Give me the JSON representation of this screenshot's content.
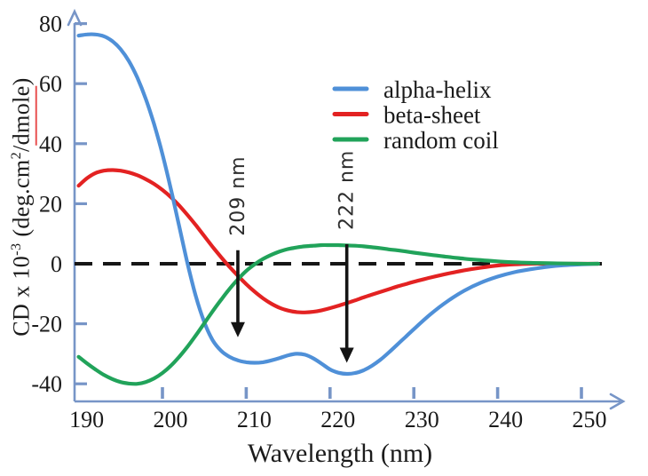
{
  "colors": {
    "alpha_helix": "#4f90d8",
    "beta_sheet": "#e32222",
    "random_coil": "#21a35a",
    "axis": "#7795c7",
    "zero_line": "#161616",
    "annotation": "#141414",
    "text": "#1b1b1b",
    "spellcheck_underline": "#e85050"
  },
  "chart_data": {
    "type": "line",
    "title": "",
    "xlabel": "Wavelength (nm)",
    "ylabel": "CD x 10-3 (deg.cm2/dmole)",
    "ylabel_parts": [
      {
        "text": "CD x 10"
      },
      {
        "text": "-3",
        "sup": true
      },
      {
        "text": " (deg.cm"
      },
      {
        "text": "2",
        "sup": true
      },
      {
        "text": "/"
      },
      {
        "text": "dmole",
        "underline": true
      },
      {
        "text": ")"
      }
    ],
    "xlim": [
      190,
      252
    ],
    "ylim": [
      -46,
      84
    ],
    "x_ticks": [
      190,
      200,
      210,
      220,
      230,
      240,
      250
    ],
    "y_ticks": [
      80,
      60,
      40,
      20,
      0,
      -20,
      -40
    ],
    "grid": false,
    "zero_line": {
      "style": "dashed",
      "y": 0
    },
    "legend": {
      "position": "upper-right",
      "entries": [
        "alpha-helix",
        "beta-sheet",
        "random coil"
      ]
    },
    "x": [
      190,
      191,
      192,
      193,
      194,
      195,
      196,
      197,
      198,
      199,
      200,
      201,
      202,
      203,
      204,
      205,
      206,
      207,
      208,
      209,
      210,
      211,
      212,
      213,
      214,
      215,
      216,
      217,
      218,
      219,
      220,
      221,
      222,
      223,
      224,
      225,
      226,
      227,
      228,
      229,
      230,
      232,
      234,
      236,
      238,
      240,
      242,
      244,
      246,
      248,
      250,
      252
    ],
    "series": [
      {
        "name": "alpha-helix",
        "color": "#4f90d8",
        "values": [
          76,
          76.4,
          76.4,
          75.8,
          74.2,
          71.5,
          67.5,
          62,
          55,
          46.5,
          36.5,
          25,
          12.5,
          0,
          -11,
          -19.5,
          -25.5,
          -29,
          -31,
          -32.2,
          -32.8,
          -33,
          -32.8,
          -32.2,
          -31.4,
          -30.5,
          -30,
          -30.3,
          -31.5,
          -33.3,
          -35.2,
          -36.3,
          -36.7,
          -36.4,
          -35.5,
          -34,
          -32,
          -29.6,
          -27,
          -24.4,
          -21.8,
          -16.8,
          -12.5,
          -9,
          -6.3,
          -4.3,
          -2.8,
          -1.8,
          -1,
          -0.5,
          -0.2,
          0
        ]
      },
      {
        "name": "beta-sheet",
        "color": "#e32222",
        "values": [
          26,
          28.5,
          30.2,
          31,
          31.2,
          31,
          30.4,
          29.5,
          28.2,
          26.6,
          24.6,
          22.2,
          19.4,
          16.2,
          12.8,
          9.2,
          5.6,
          2.2,
          -1,
          -4,
          -6.8,
          -9.3,
          -11.5,
          -13.3,
          -14.7,
          -15.6,
          -16.1,
          -16.2,
          -16,
          -15.5,
          -14.8,
          -14,
          -13.1,
          -12.2,
          -11.2,
          -10.3,
          -9.4,
          -8.5,
          -7.6,
          -6.8,
          -6,
          -4.6,
          -3.3,
          -2.2,
          -1.3,
          -0.6,
          -0.2,
          0,
          0,
          0,
          0,
          0
        ]
      },
      {
        "name": "random coil",
        "color": "#21a35a",
        "values": [
          -31,
          -33.2,
          -35.2,
          -37,
          -38.4,
          -39.4,
          -39.9,
          -40,
          -39.4,
          -38.2,
          -36.4,
          -34,
          -31,
          -27.6,
          -23.8,
          -19.8,
          -15.8,
          -12,
          -8.4,
          -5.2,
          -2.4,
          -0.2,
          1.6,
          3,
          4.1,
          4.9,
          5.4,
          5.8,
          6,
          6.2,
          6.2,
          6.2,
          6.1,
          6,
          5.8,
          5.5,
          5.2,
          4.8,
          4.5,
          4.1,
          3.7,
          3,
          2.3,
          1.7,
          1.2,
          0.8,
          0.5,
          0.3,
          0.2,
          0.1,
          0,
          0
        ]
      }
    ],
    "annotations": [
      {
        "label": "209 nm",
        "x": 209,
        "arrow_from_y": 4.5,
        "arrow_to_y": -24.5
      },
      {
        "label": "222 nm",
        "x": 222,
        "arrow_from_y": 6.5,
        "arrow_to_y": -33
      }
    ]
  }
}
